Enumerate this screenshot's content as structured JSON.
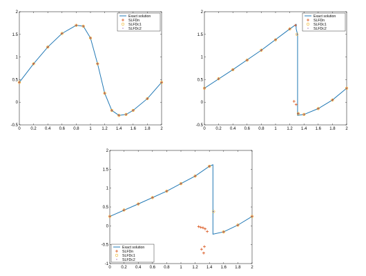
{
  "chart_data": [
    {
      "type": "scatter",
      "xlim": [
        0,
        2
      ],
      "ylim": [
        -0.5,
        2
      ],
      "x_ticks": [
        "0",
        "0.2",
        "0.4",
        "0.6",
        "0.8",
        "1",
        "1.2",
        "1.4",
        "1.6",
        "1.8",
        "2"
      ],
      "y_ticks": [
        "-0.5",
        "0",
        "0.5",
        "1",
        "1.5",
        "2"
      ],
      "grid": false,
      "legend_position": "top-right",
      "legend": [
        "Exact solution",
        "SLFDn",
        "SLFDc1",
        "SLFDc2"
      ],
      "series": [
        {
          "name": "Exact solution",
          "marker": "line",
          "color": "#1f77b4",
          "x": [
            0,
            0.2,
            0.4,
            0.6,
            0.8,
            0.9,
            1.0,
            1.1,
            1.2,
            1.3,
            1.4,
            1.5,
            1.6,
            1.8,
            2.0
          ],
          "y": [
            0.44,
            0.85,
            1.22,
            1.52,
            1.7,
            1.68,
            1.42,
            0.85,
            0.2,
            -0.18,
            -0.29,
            -0.27,
            -0.18,
            0.08,
            0.44
          ]
        },
        {
          "name": "SLFDn",
          "marker": "plus",
          "color": "#d95319",
          "x": [
            0,
            0.2,
            0.4,
            0.6,
            0.8,
            0.9,
            1.0,
            1.1,
            1.2,
            1.3,
            1.4,
            1.5,
            1.6,
            1.8,
            2.0
          ],
          "y": [
            0.44,
            0.85,
            1.22,
            1.52,
            1.7,
            1.68,
            1.42,
            0.85,
            0.2,
            -0.18,
            -0.29,
            -0.27,
            -0.18,
            0.08,
            0.44
          ]
        },
        {
          "name": "SLFDc1",
          "marker": "circle",
          "color": "#edb120",
          "x": [
            0,
            0.2,
            0.4,
            0.6,
            0.8,
            0.9,
            1.0,
            1.1,
            1.2,
            1.3,
            1.4,
            1.5,
            1.6,
            1.8,
            2.0
          ],
          "y": [
            0.44,
            0.85,
            1.22,
            1.52,
            1.7,
            1.68,
            1.42,
            0.85,
            0.2,
            -0.18,
            -0.29,
            -0.27,
            -0.18,
            0.08,
            0.44
          ]
        },
        {
          "name": "SLFDc2",
          "marker": "dot",
          "color": "#7e2f8e",
          "x": [
            0,
            0.2,
            0.4,
            0.6,
            0.8,
            0.9,
            1.0,
            1.1,
            1.2,
            1.3,
            1.4,
            1.5,
            1.6,
            1.8,
            2.0
          ],
          "y": [
            0.44,
            0.85,
            1.22,
            1.52,
            1.7,
            1.68,
            1.42,
            0.85,
            0.2,
            -0.18,
            -0.29,
            -0.27,
            -0.18,
            0.08,
            0.44
          ]
        }
      ]
    },
    {
      "type": "scatter",
      "xlim": [
        0,
        2
      ],
      "ylim": [
        -0.5,
        2
      ],
      "x_ticks": [
        "0",
        "0.2",
        "0.4",
        "0.6",
        "0.8",
        "1",
        "1.2",
        "1.4",
        "1.6",
        "1.8",
        "2"
      ],
      "y_ticks": [
        "-0.5",
        "0",
        "0.5",
        "1",
        "1.5",
        "2"
      ],
      "grid": false,
      "legend_position": "top-right",
      "legend": [
        "Exact solution",
        "SLFDn",
        "SLFDc1",
        "SLFDc2"
      ],
      "series": [
        {
          "name": "Exact solution",
          "marker": "line",
          "color": "#1f77b4",
          "x": [
            0,
            0.4,
            0.8,
            1.2,
            1.29,
            1.29,
            1.31,
            1.31,
            1.4,
            1.6,
            1.8,
            2.0
          ],
          "y": [
            0.31,
            0.72,
            1.15,
            1.62,
            1.72,
            1.62,
            1.5,
            -0.29,
            -0.27,
            -0.14,
            0.05,
            0.31
          ]
        },
        {
          "name": "SLFDn",
          "marker": "plus",
          "color": "#d95319",
          "x": [
            0,
            0.2,
            0.4,
            0.6,
            0.8,
            1.0,
            1.2,
            1.28,
            1.26,
            1.29,
            1.32,
            1.4,
            1.6,
            1.8,
            2.0
          ],
          "y": [
            0.31,
            0.52,
            0.72,
            0.93,
            1.15,
            1.38,
            1.62,
            1.7,
            0.02,
            -0.05,
            -0.25,
            -0.27,
            -0.14,
            0.05,
            0.31
          ]
        },
        {
          "name": "SLFDc1",
          "marker": "circle",
          "color": "#edb120",
          "x": [
            0,
            0.2,
            0.4,
            0.6,
            0.8,
            1.0,
            1.2,
            1.3,
            1.32,
            1.4,
            1.6,
            1.8,
            2.0
          ],
          "y": [
            0.31,
            0.52,
            0.72,
            0.93,
            1.15,
            1.38,
            1.62,
            1.5,
            -0.25,
            -0.27,
            -0.14,
            0.05,
            0.31
          ]
        },
        {
          "name": "SLFDc2",
          "marker": "dot",
          "color": "#7e2f8e",
          "x": [
            0,
            0.2,
            0.4,
            0.6,
            0.8,
            1.0,
            1.2,
            1.3,
            1.32,
            1.4,
            1.6,
            1.8,
            2.0
          ],
          "y": [
            0.31,
            0.52,
            0.72,
            0.93,
            1.15,
            1.38,
            1.62,
            1.5,
            -0.25,
            -0.27,
            -0.14,
            0.05,
            0.31
          ]
        }
      ]
    },
    {
      "type": "scatter",
      "xlim": [
        0,
        2
      ],
      "ylim": [
        -1,
        2
      ],
      "x_ticks": [
        "0",
        "0.2",
        "0.4",
        "0.6",
        "0.8",
        "1",
        "1.2",
        "1.4",
        "1.6",
        "1.8",
        "2"
      ],
      "y_ticks": [
        "-1",
        "-0.5",
        "0",
        "0.5",
        "1",
        "1.5",
        "2"
      ],
      "grid": false,
      "legend_position": "bottom-left",
      "legend": [
        "Exact solution",
        "SLFDn",
        "SLFDc1",
        "SLFDc2"
      ],
      "series": [
        {
          "name": "Exact solution",
          "marker": "line",
          "color": "#1f77b4",
          "x": [
            0,
            0.4,
            0.8,
            1.2,
            1.4,
            1.45,
            1.45,
            1.6,
            1.8,
            2.0
          ],
          "y": [
            0.25,
            0.58,
            0.92,
            1.32,
            1.58,
            1.62,
            -0.22,
            -0.16,
            0.02,
            0.25
          ]
        },
        {
          "name": "SLFDn",
          "marker": "plus",
          "color": "#d95319",
          "x": [
            0,
            0.2,
            0.4,
            0.6,
            0.8,
            1.0,
            1.2,
            1.4,
            1.25,
            1.28,
            1.31,
            1.34,
            1.37,
            1.29,
            1.33,
            1.32,
            1.6,
            1.8,
            2.0
          ],
          "y": [
            0.25,
            0.42,
            0.58,
            0.75,
            0.92,
            1.12,
            1.32,
            1.58,
            -0.02,
            -0.04,
            -0.05,
            -0.08,
            -0.15,
            -0.62,
            -0.55,
            -0.72,
            -0.16,
            0.02,
            0.25
          ]
        },
        {
          "name": "SLFDc1",
          "marker": "circle",
          "color": "#edb120",
          "x": [
            0,
            0.2,
            0.4,
            0.6,
            0.8,
            1.0,
            1.2,
            1.4,
            1.46,
            1.6,
            1.8,
            2.0
          ],
          "y": [
            0.25,
            0.42,
            0.58,
            0.75,
            0.92,
            1.12,
            1.32,
            1.58,
            0.38,
            -0.16,
            0.02,
            0.25
          ]
        },
        {
          "name": "SLFDc2",
          "marker": "dot",
          "color": "#7e2f8e",
          "x": [
            0,
            0.2,
            0.4,
            0.6,
            0.8,
            1.0,
            1.2,
            1.4,
            1.46,
            1.6,
            1.8,
            2.0
          ],
          "y": [
            0.25,
            0.42,
            0.58,
            0.75,
            0.92,
            1.12,
            1.32,
            1.58,
            0.38,
            -0.16,
            0.02,
            0.25
          ]
        }
      ]
    }
  ]
}
